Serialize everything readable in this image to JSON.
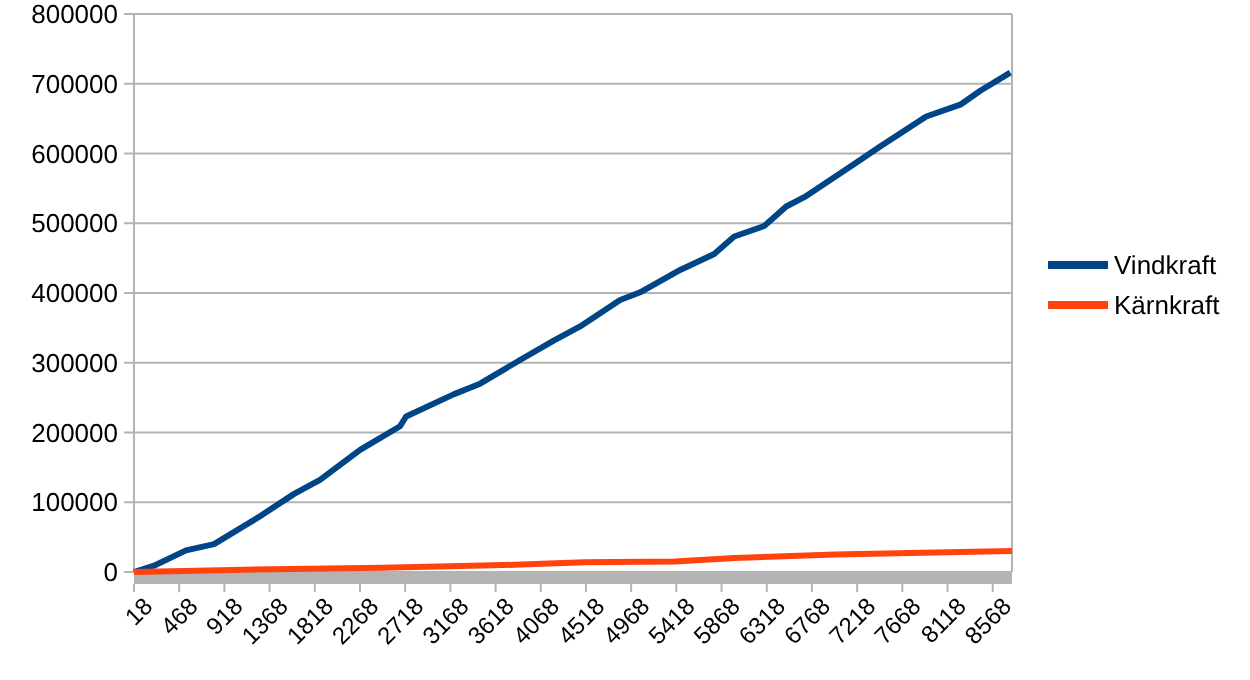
{
  "chart_data": {
    "type": "line",
    "xlim": [
      18,
      8760
    ],
    "xticks": [
      18,
      468,
      918,
      1368,
      1818,
      2268,
      2718,
      3168,
      3618,
      4068,
      4518,
      4968,
      5418,
      5868,
      6318,
      6768,
      7218,
      7668,
      8118,
      8568
    ],
    "ylim": [
      0,
      800000
    ],
    "yticks": [
      0,
      100000,
      200000,
      300000,
      400000,
      500000,
      600000,
      700000,
      800000
    ],
    "grid": "y",
    "legend": "right",
    "line_style": "solid",
    "series": [
      {
        "name": "Vindkraft",
        "color": "#004586",
        "x": [
          18,
          217,
          536,
          815,
          1273,
          1612,
          1870,
          2269,
          2667,
          2727,
          3205,
          3464,
          3862,
          4201,
          4460,
          4858,
          5058,
          5456,
          5795,
          5994,
          6293,
          6512,
          6711,
          7189,
          7447,
          7906,
          8245,
          8444,
          8743
        ],
        "values": [
          0,
          9000,
          31000,
          40000,
          80000,
          112000,
          132000,
          175000,
          209000,
          223000,
          255000,
          270000,
          304000,
          332000,
          352000,
          390000,
          401000,
          433000,
          456000,
          481000,
          496000,
          524000,
          539000,
          585000,
          610000,
          653000,
          670000,
          690000,
          716000
        ]
      },
      {
        "name": "Kärnkraft",
        "color": "#ff420e",
        "x": [
          18,
          1000,
          2500,
          3700,
          4500,
          5400,
          6000,
          7000,
          8000,
          8760
        ],
        "values": [
          0,
          3000,
          6000,
          10000,
          14000,
          15000,
          20000,
          25000,
          28000,
          30000
        ]
      }
    ]
  }
}
